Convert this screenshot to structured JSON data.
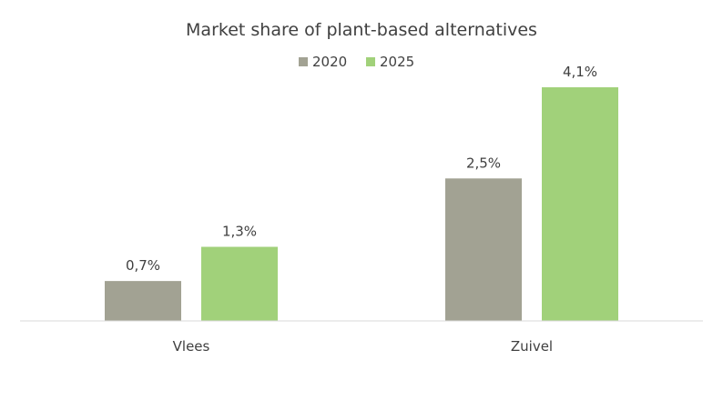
{
  "chart_data": {
    "type": "bar",
    "title": "Market share of plant-based alternatives",
    "categories": [
      "Vlees",
      "Zuivel"
    ],
    "series": [
      {
        "name": "2020",
        "values": [
          0.7,
          2.5
        ],
        "labels": [
          "0,7%",
          "2,5%"
        ],
        "color": "#a2a293"
      },
      {
        "name": "2025",
        "values": [
          1.3,
          4.1
        ],
        "labels": [
          "1,3%",
          "4,1%"
        ],
        "color": "#a1d17a"
      }
    ],
    "ylim": [
      0,
      4.1
    ],
    "grid": false,
    "legend_position": "top"
  }
}
